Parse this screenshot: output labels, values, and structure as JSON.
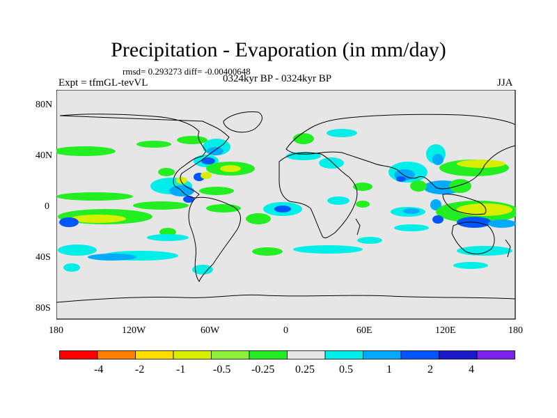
{
  "title": "Precipitation - Evaporation (in mm/day)",
  "stats": "rmsd= 0.293273 diff= -0.00400648",
  "expt": "Expt = tfmGL-tevVL",
  "period": "0324kyr BP - 0324kyr BP",
  "season": "JJA",
  "lat_labels": [
    "80N",
    "40N",
    "0",
    "40S",
    "80S"
  ],
  "lon_labels": [
    "180",
    "120W",
    "60W",
    "0",
    "60E",
    "120E",
    "180"
  ],
  "colorbar": {
    "colors": [
      "#ff0000",
      "#ff8000",
      "#ffdd00",
      "#d8ee00",
      "#8cf03a",
      "#22ee22",
      "#e6e6e6",
      "#00eee8",
      "#00aaff",
      "#0055ff",
      "#1a1acc",
      "#7a22ee"
    ],
    "labels": [
      "-4",
      "-2",
      "-1",
      "-0.5",
      "-0.25",
      "0.25",
      "0.5",
      "1",
      "2",
      "4"
    ]
  },
  "colors": {
    "background": "#e6e6e6",
    "coast": "#000000"
  }
}
